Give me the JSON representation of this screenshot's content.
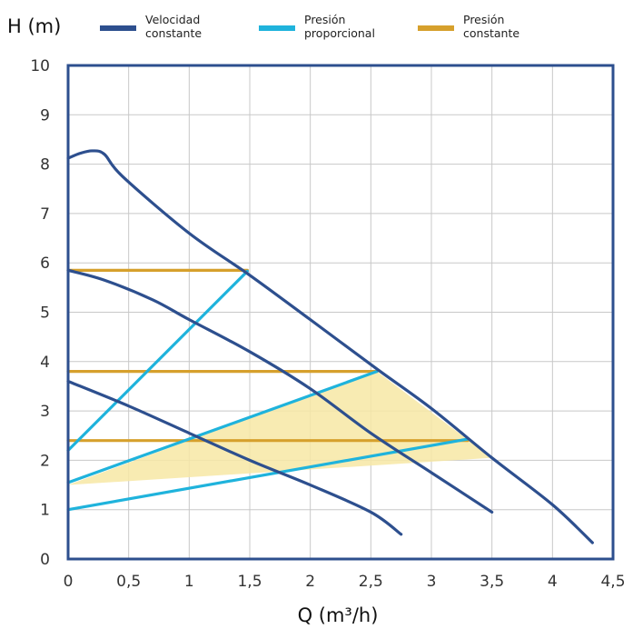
{
  "chart_data": {
    "type": "line",
    "xlabel": "Q (m³/h)",
    "ylabel": "H (m)",
    "xlim": [
      0,
      4.5
    ],
    "ylim": [
      0,
      10
    ],
    "grid": true,
    "legend_placement": "top",
    "x_ticks": [
      "0",
      "0,5",
      "1",
      "1,5",
      "2",
      "2,5",
      "3",
      "3,5",
      "4",
      "4,5"
    ],
    "y_ticks": [
      "0",
      "1",
      "2",
      "3",
      "4",
      "5",
      "6",
      "7",
      "8",
      "9",
      "10"
    ],
    "legend": [
      {
        "label_lines": [
          "Velocidad",
          "constante"
        ],
        "color": "#2d4f8e"
      },
      {
        "label_lines": [
          "Presión",
          "proporcional"
        ],
        "color": "#1fb3dc"
      },
      {
        "label_lines": [
          "Presión",
          "constante"
        ],
        "color": "#d6a02c"
      }
    ],
    "colors": {
      "frame": "#2d4f8e",
      "grid": "#c8c8c8",
      "velocidad_constante": "#2d4f8e",
      "presion_proporcional": "#1fb3dc",
      "presion_constante": "#d6a02c",
      "shaded_region": "#f7e8a4"
    },
    "shaded_region": [
      [
        0,
        1.5
      ],
      [
        2.55,
        3.8
      ],
      [
        3.5,
        2.05
      ]
    ],
    "series": [
      {
        "group": "Velocidad constante",
        "points": [
          [
            0,
            8.12
          ],
          [
            0.1,
            8.22
          ],
          [
            0.2,
            8.27
          ],
          [
            0.3,
            8.2
          ],
          [
            0.45,
            7.75
          ],
          [
            1.0,
            6.6
          ],
          [
            1.5,
            5.75
          ],
          [
            2.0,
            4.85
          ],
          [
            2.55,
            3.85
          ],
          [
            3.0,
            3.05
          ],
          [
            3.5,
            2.05
          ],
          [
            4.0,
            1.1
          ],
          [
            4.33,
            0.33
          ]
        ]
      },
      {
        "group": "Velocidad constante",
        "points": [
          [
            0,
            5.85
          ],
          [
            0.3,
            5.65
          ],
          [
            0.7,
            5.25
          ],
          [
            1.0,
            4.85
          ],
          [
            1.5,
            4.2
          ],
          [
            2.0,
            3.45
          ],
          [
            2.5,
            2.55
          ],
          [
            3.0,
            1.75
          ],
          [
            3.5,
            0.95
          ]
        ]
      },
      {
        "group": "Velocidad constante",
        "points": [
          [
            0,
            3.6
          ],
          [
            0.5,
            3.1
          ],
          [
            1.0,
            2.55
          ],
          [
            1.5,
            2.0
          ],
          [
            2.0,
            1.5
          ],
          [
            2.5,
            0.95
          ],
          [
            2.75,
            0.5
          ]
        ]
      },
      {
        "group": "Presión proporcional",
        "points": [
          [
            0,
            2.2
          ],
          [
            1.48,
            5.83
          ]
        ]
      },
      {
        "group": "Presión proporcional",
        "points": [
          [
            0,
            1.55
          ],
          [
            2.55,
            3.8
          ]
        ]
      },
      {
        "group": "Presión proporcional",
        "points": [
          [
            0,
            1.0
          ],
          [
            3.3,
            2.43
          ]
        ]
      },
      {
        "group": "Presión constante",
        "points": [
          [
            0,
            5.85
          ],
          [
            1.48,
            5.85
          ]
        ]
      },
      {
        "group": "Presión constante",
        "points": [
          [
            0,
            3.8
          ],
          [
            2.55,
            3.8
          ]
        ]
      },
      {
        "group": "Presión constante",
        "points": [
          [
            0,
            2.4
          ],
          [
            3.3,
            2.4
          ]
        ]
      }
    ]
  }
}
